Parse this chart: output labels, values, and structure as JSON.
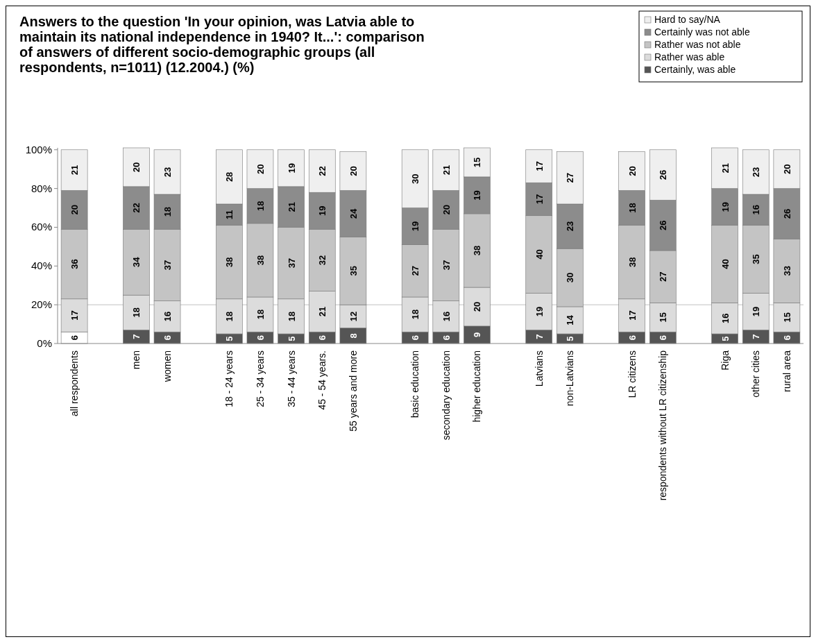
{
  "chart_data": {
    "type": "bar",
    "stacked": true,
    "title": "Answers to the question 'In your opinion, was Latvia able to maintain its national independence in 1940? It...': comparison of answers of different socio-demographic groups (all respondents, n=1011) (12.2004.) (%)",
    "categories": [
      "all respondents",
      null,
      "men",
      "women",
      null,
      "18 - 24 years",
      "25 - 34 years",
      "35 - 44 years",
      "45 - 54 years.",
      "55 years and more",
      null,
      "basic education",
      "secondary education",
      "higher education",
      null,
      "Latvians",
      "non-Latvians",
      null,
      "LR citizens",
      "respondents without LR citizenship",
      null,
      "Riga",
      "other cities",
      "rural area"
    ],
    "series": [
      {
        "name": "Certainly, was able",
        "color": "#555555",
        "colors": [
          "#ffffff",
          null,
          "#555555",
          "#555555",
          null,
          "#555555",
          "#555555",
          "#555555",
          "#555555",
          "#555555",
          null,
          "#555555",
          "#555555",
          "#555555",
          null,
          "#555555",
          "#555555",
          null,
          "#555555",
          "#555555",
          null,
          "#555555",
          "#555555",
          "#555555"
        ],
        "values": [
          6,
          null,
          7,
          6,
          null,
          5,
          6,
          5,
          6,
          8,
          null,
          6,
          6,
          9,
          null,
          7,
          5,
          null,
          6,
          6,
          null,
          5,
          7,
          6
        ]
      },
      {
        "name": "Rather was able",
        "color": "#dcdcdc",
        "values": [
          17,
          null,
          18,
          16,
          null,
          18,
          18,
          18,
          21,
          12,
          null,
          18,
          16,
          20,
          null,
          19,
          14,
          null,
          17,
          15,
          null,
          16,
          19,
          15
        ]
      },
      {
        "name": "Rather was not able",
        "color": "#c4c4c4",
        "values": [
          36,
          null,
          34,
          37,
          null,
          38,
          38,
          37,
          32,
          35,
          null,
          27,
          37,
          38,
          null,
          40,
          30,
          null,
          38,
          27,
          null,
          40,
          35,
          33
        ]
      },
      {
        "name": "Certainly was not able",
        "color": "#8c8c8c",
        "values": [
          20,
          null,
          22,
          18,
          null,
          11,
          18,
          21,
          19,
          24,
          null,
          19,
          20,
          19,
          null,
          17,
          23,
          null,
          18,
          26,
          null,
          19,
          16,
          26
        ]
      },
      {
        "name": "Hard to say/NA",
        "color": "#efefef",
        "values": [
          21,
          null,
          20,
          23,
          null,
          28,
          20,
          19,
          22,
          20,
          null,
          30,
          21,
          15,
          null,
          17,
          27,
          null,
          20,
          26,
          null,
          21,
          23,
          20
        ]
      }
    ],
    "ylim": [
      0,
      101
    ],
    "yticks": [
      {
        "value": 0,
        "label": "0%"
      },
      {
        "value": 20,
        "label": "20%"
      },
      {
        "value": 40,
        "label": "40%"
      },
      {
        "value": 60,
        "label": "60%"
      },
      {
        "value": 80,
        "label": "80%"
      },
      {
        "value": 100,
        "label": "100%"
      }
    ],
    "ref_lines": [
      {
        "axis": "y",
        "value": 20,
        "color": "#c0c0c0"
      }
    ],
    "data_labels": true,
    "legend": "top right"
  }
}
